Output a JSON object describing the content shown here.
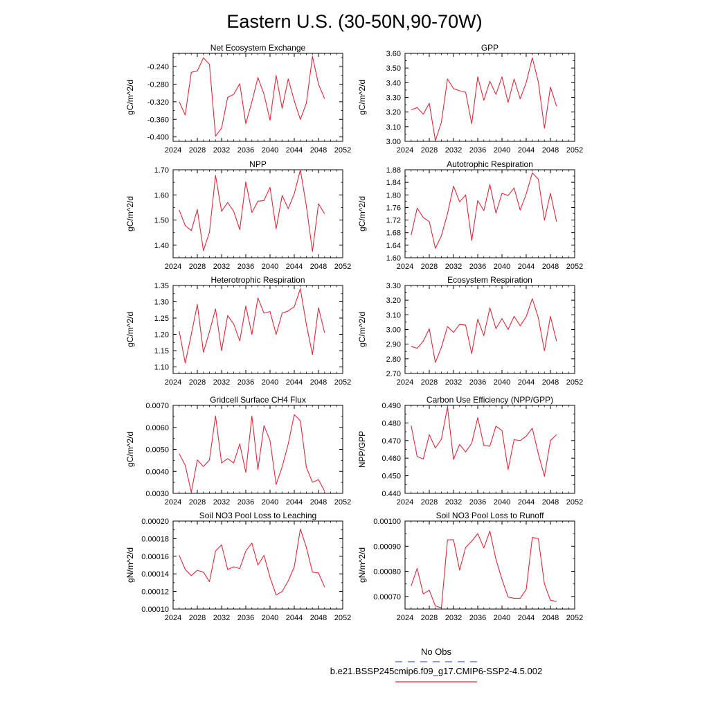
{
  "figure": {
    "title": "Eastern U.S. (30-50N,90-70W)",
    "legend": [
      {
        "label": "No Obs",
        "color": "#4a5fd8",
        "dash": true
      },
      {
        "label": "b.e21.BSSP245cmip6.f09_g17.CMIP6-SSP2-4.5.002",
        "color": "#e0283a",
        "dash": false
      }
    ]
  },
  "chart_data": [
    {
      "type": "line",
      "title": "Net Ecosystem Exchange",
      "ylabel": "gC/m^2/d",
      "xlim": [
        2024,
        2052
      ],
      "xticks": [
        "2024",
        "2028",
        "2032",
        "2036",
        "2040",
        "2044",
        "2048",
        "2052"
      ],
      "ylim": [
        -0.41,
        -0.21
      ],
      "yticks": [
        "-0.240",
        "-0.280",
        "-0.320",
        "-0.360",
        "-0.400"
      ],
      "ytick_values": [
        -0.24,
        -0.28,
        -0.32,
        -0.36,
        -0.4
      ],
      "grid": false,
      "color": "#e0283a",
      "x": [
        2025,
        2026,
        2027,
        2028,
        2029,
        2030,
        2031,
        2032,
        2033,
        2034,
        2035,
        2036,
        2037,
        2038,
        2039,
        2040,
        2041,
        2042,
        2043,
        2044,
        2045,
        2046,
        2047,
        2048,
        2049
      ],
      "y": [
        -0.32,
        -0.35,
        -0.253,
        -0.25,
        -0.22,
        -0.235,
        -0.398,
        -0.38,
        -0.31,
        -0.303,
        -0.279,
        -0.37,
        -0.32,
        -0.265,
        -0.303,
        -0.362,
        -0.26,
        -0.335,
        -0.268,
        -0.318,
        -0.36,
        -0.323,
        -0.217,
        -0.28,
        -0.313
      ]
    },
    {
      "type": "line",
      "title": "GPP",
      "ylabel": "gC/m^2/d",
      "xlim": [
        2024,
        2052
      ],
      "xticks": [
        "2024",
        "2028",
        "2032",
        "2036",
        "2040",
        "2044",
        "2048",
        "2052"
      ],
      "ylim": [
        3.0,
        3.6
      ],
      "yticks": [
        "3.60",
        "3.50",
        "3.40",
        "3.30",
        "3.20",
        "3.10",
        "3.00"
      ],
      "ytick_values": [
        3.6,
        3.5,
        3.4,
        3.3,
        3.2,
        3.1,
        3.0
      ],
      "grid": false,
      "color": "#e0283a",
      "x": [
        2025,
        2026,
        2027,
        2028,
        2029,
        2030,
        2031,
        2032,
        2033,
        2034,
        2035,
        2036,
        2037,
        2038,
        2039,
        2040,
        2041,
        2042,
        2043,
        2044,
        2045,
        2046,
        2047,
        2048,
        2049
      ],
      "y": [
        3.215,
        3.23,
        3.185,
        3.26,
        3.005,
        3.13,
        3.425,
        3.36,
        3.345,
        3.335,
        3.12,
        3.44,
        3.28,
        3.41,
        3.32,
        3.44,
        3.265,
        3.425,
        3.29,
        3.4,
        3.57,
        3.405,
        3.09,
        3.37,
        3.24
      ]
    },
    {
      "type": "line",
      "title": "NPP",
      "ylabel": "gC/m^2/d",
      "xlim": [
        2024,
        2052
      ],
      "xticks": [
        "2024",
        "2028",
        "2032",
        "2036",
        "2040",
        "2044",
        "2048",
        "2052"
      ],
      "ylim": [
        1.35,
        1.7
      ],
      "yticks": [
        "1.70",
        "1.60",
        "1.50",
        "1.40"
      ],
      "ytick_values": [
        1.7,
        1.6,
        1.5,
        1.4
      ],
      "grid": false,
      "color": "#e0283a",
      "x": [
        2025,
        2026,
        2027,
        2028,
        2029,
        2030,
        2031,
        2032,
        2033,
        2034,
        2035,
        2036,
        2037,
        2038,
        2039,
        2040,
        2041,
        2042,
        2043,
        2044,
        2045,
        2046,
        2047,
        2048,
        2049
      ],
      "y": [
        1.54,
        1.478,
        1.458,
        1.542,
        1.378,
        1.452,
        1.678,
        1.535,
        1.57,
        1.535,
        1.462,
        1.652,
        1.53,
        1.575,
        1.578,
        1.63,
        1.465,
        1.598,
        1.545,
        1.605,
        1.7,
        1.555,
        1.375,
        1.565,
        1.525
      ]
    },
    {
      "type": "line",
      "title": "Autotrophic Respiration",
      "ylabel": "gC/m^2/d",
      "xlim": [
        2024,
        2052
      ],
      "xticks": [
        "2024",
        "2028",
        "2032",
        "2036",
        "2040",
        "2044",
        "2048",
        "2052"
      ],
      "ylim": [
        1.6,
        1.88
      ],
      "yticks": [
        "1.88",
        "1.84",
        "1.80",
        "1.76",
        "1.72",
        "1.68",
        "1.64",
        "1.60"
      ],
      "ytick_values": [
        1.88,
        1.84,
        1.8,
        1.76,
        1.72,
        1.68,
        1.64,
        1.6
      ],
      "grid": false,
      "color": "#e0283a",
      "x": [
        2025,
        2026,
        2027,
        2028,
        2029,
        2030,
        2031,
        2032,
        2033,
        2034,
        2035,
        2036,
        2037,
        2038,
        2039,
        2040,
        2041,
        2042,
        2043,
        2044,
        2045,
        2046,
        2047,
        2048,
        2049
      ],
      "y": [
        1.672,
        1.758,
        1.728,
        1.715,
        1.63,
        1.67,
        1.74,
        1.828,
        1.778,
        1.8,
        1.655,
        1.782,
        1.75,
        1.833,
        1.742,
        1.805,
        1.798,
        1.822,
        1.752,
        1.803,
        1.87,
        1.85,
        1.72,
        1.805,
        1.715
      ]
    },
    {
      "type": "line",
      "title": "Heterotrophic Respiration",
      "ylabel": "gC/m^2/d",
      "xlim": [
        2024,
        2052
      ],
      "xticks": [
        "2024",
        "2028",
        "2032",
        "2036",
        "2040",
        "2044",
        "2048",
        "2052"
      ],
      "ylim": [
        1.08,
        1.35
      ],
      "yticks": [
        "1.35",
        "1.30",
        "1.25",
        "1.20",
        "1.15",
        "1.10"
      ],
      "ytick_values": [
        1.35,
        1.3,
        1.25,
        1.2,
        1.15,
        1.1
      ],
      "grid": false,
      "color": "#e0283a",
      "x": [
        2025,
        2026,
        2027,
        2028,
        2029,
        2030,
        2031,
        2032,
        2033,
        2034,
        2035,
        2036,
        2037,
        2038,
        2039,
        2040,
        2041,
        2042,
        2043,
        2044,
        2045,
        2046,
        2047,
        2048,
        2049
      ],
      "y": [
        1.21,
        1.112,
        1.2,
        1.292,
        1.145,
        1.208,
        1.278,
        1.15,
        1.258,
        1.232,
        1.18,
        1.287,
        1.2,
        1.312,
        1.265,
        1.27,
        1.2,
        1.265,
        1.272,
        1.285,
        1.34,
        1.23,
        1.138,
        1.282,
        1.205
      ]
    },
    {
      "type": "line",
      "title": "Ecosystem Respiration",
      "ylabel": "gC/m^2/d",
      "xlim": [
        2024,
        2052
      ],
      "xticks": [
        "2024",
        "2028",
        "2032",
        "2036",
        "2040",
        "2044",
        "2048",
        "2052"
      ],
      "ylim": [
        2.7,
        3.3
      ],
      "yticks": [
        "3.30",
        "3.20",
        "3.10",
        "3.00",
        "2.90",
        "2.80",
        "2.70"
      ],
      "ytick_values": [
        3.3,
        3.2,
        3.1,
        3.0,
        2.9,
        2.8,
        2.7
      ],
      "grid": false,
      "color": "#e0283a",
      "x": [
        2025,
        2026,
        2027,
        2028,
        2029,
        2030,
        2031,
        2032,
        2033,
        2034,
        2035,
        2036,
        2037,
        2038,
        2039,
        2040,
        2041,
        2042,
        2043,
        2044,
        2045,
        2046,
        2047,
        2048,
        2049
      ],
      "y": [
        2.885,
        2.872,
        2.92,
        3.005,
        2.775,
        2.878,
        3.02,
        2.98,
        3.035,
        3.03,
        2.835,
        3.07,
        2.958,
        3.148,
        3.005,
        3.075,
        3.0,
        3.09,
        3.025,
        3.088,
        3.21,
        3.08,
        2.855,
        3.09,
        2.92
      ]
    },
    {
      "type": "line",
      "title": "Gridcell Surface CH4 Flux",
      "ylabel": "gC/m^2/d",
      "xlim": [
        2024,
        2052
      ],
      "xticks": [
        "2024",
        "2028",
        "2032",
        "2036",
        "2040",
        "2044",
        "2048",
        "2052"
      ],
      "ylim": [
        0.003,
        0.007
      ],
      "yticks": [
        "0.0070",
        "0.0060",
        "0.0050",
        "0.0040",
        "0.0030"
      ],
      "ytick_values": [
        0.007,
        0.006,
        0.005,
        0.004,
        0.003
      ],
      "grid": false,
      "color": "#e0283a",
      "x": [
        2025,
        2026,
        2027,
        2028,
        2029,
        2030,
        2031,
        2032,
        2033,
        2034,
        2035,
        2036,
        2037,
        2038,
        2039,
        2040,
        2041,
        2042,
        2043,
        2044,
        2045,
        2046,
        2047,
        2048,
        2049
      ],
      "y": [
        0.0048,
        0.00428,
        0.00305,
        0.00452,
        0.00422,
        0.00452,
        0.00652,
        0.00438,
        0.00458,
        0.00438,
        0.00525,
        0.00395,
        0.00652,
        0.00408,
        0.00608,
        0.0054,
        0.0034,
        0.0042,
        0.00525,
        0.00658,
        0.0063,
        0.00418,
        0.0035,
        0.00362,
        0.0031
      ]
    },
    {
      "type": "line",
      "title": "Carbon Use Efficiency (NPP/GPP)",
      "ylabel": "NPP/GPP",
      "xlim": [
        2024,
        2052
      ],
      "xticks": [
        "2024",
        "2028",
        "2032",
        "2036",
        "2040",
        "2044",
        "2048",
        "2052"
      ],
      "ylim": [
        0.44,
        0.49
      ],
      "yticks": [
        "0.490",
        "0.480",
        "0.470",
        "0.460",
        "0.450",
        "0.440"
      ],
      "ytick_values": [
        0.49,
        0.48,
        0.47,
        0.46,
        0.45,
        0.44
      ],
      "grid": false,
      "color": "#e0283a",
      "x": [
        2025,
        2026,
        2027,
        2028,
        2029,
        2030,
        2031,
        2032,
        2033,
        2034,
        2035,
        2036,
        2037,
        2038,
        2039,
        2040,
        2041,
        2042,
        2043,
        2044,
        2045,
        2046,
        2047,
        2048,
        2049
      ],
      "y": [
        0.4785,
        0.461,
        0.4595,
        0.4733,
        0.4658,
        0.4708,
        0.489,
        0.4593,
        0.4678,
        0.4635,
        0.4685,
        0.483,
        0.4672,
        0.4668,
        0.4782,
        0.4757,
        0.4535,
        0.4705,
        0.47,
        0.4725,
        0.477,
        0.4625,
        0.4497,
        0.47,
        0.4733
      ]
    },
    {
      "type": "line",
      "title": "Soil NO3 Pool Loss to Leaching",
      "ylabel": "gN/m^2/d",
      "xlim": [
        2024,
        2052
      ],
      "xticks": [
        "2024",
        "2028",
        "2032",
        "2036",
        "2040",
        "2044",
        "2048",
        "2052"
      ],
      "ylim": [
        0.0001,
        0.0002
      ],
      "yticks": [
        "0.00020",
        "0.00018",
        "0.00016",
        "0.00014",
        "0.00012",
        "0.00010"
      ],
      "ytick_values": [
        0.0002,
        0.00018,
        0.00016,
        0.00014,
        0.00012,
        0.0001
      ],
      "grid": false,
      "color": "#e0283a",
      "x": [
        2025,
        2026,
        2027,
        2028,
        2029,
        2030,
        2031,
        2032,
        2033,
        2034,
        2035,
        2036,
        2037,
        2038,
        2039,
        2040,
        2041,
        2042,
        2043,
        2044,
        2045,
        2046,
        2047,
        2048,
        2049
      ],
      "y": [
        0.000161,
        0.000145,
        0.000138,
        0.000144,
        0.000142,
        0.000131,
        0.000166,
        0.000173,
        0.000145,
        0.000148,
        0.000146,
        0.000166,
        0.000175,
        0.00015,
        0.000161,
        0.000136,
        0.000116,
        0.00012,
        0.000132,
        0.000148,
        0.000191,
        0.00017,
        0.000142,
        0.000141,
        0.000125
      ]
    },
    {
      "type": "line",
      "title": "Soil NO3 Pool Loss to Runoff",
      "ylabel": "gN/m^2/d",
      "xlim": [
        2024,
        2052
      ],
      "xticks": [
        "2024",
        "2028",
        "2032",
        "2036",
        "2040",
        "2044",
        "2048",
        "2052"
      ],
      "ylim": [
        0.00065,
        0.001
      ],
      "yticks": [
        "0.00100",
        "0.00090",
        "0.00080",
        "0.00070"
      ],
      "ytick_values": [
        0.001,
        0.0009,
        0.0008,
        0.0007
      ],
      "grid": false,
      "color": "#e0283a",
      "x": [
        2025,
        2026,
        2027,
        2028,
        2029,
        2030,
        2031,
        2032,
        2033,
        2034,
        2035,
        2036,
        2037,
        2038,
        2039,
        2040,
        2041,
        2042,
        2043,
        2044,
        2045,
        2046,
        2047,
        2048,
        2049
      ],
      "y": [
        0.000742,
        0.000812,
        0.00071,
        0.000725,
        0.000662,
        0.000655,
        0.000925,
        0.000926,
        0.000805,
        0.000895,
        0.00092,
        0.00095,
        0.000893,
        0.00096,
        0.000848,
        0.000768,
        0.000698,
        0.000693,
        0.000693,
        0.000728,
        0.000935,
        0.00093,
        0.00075,
        0.000685,
        0.00068
      ]
    }
  ]
}
